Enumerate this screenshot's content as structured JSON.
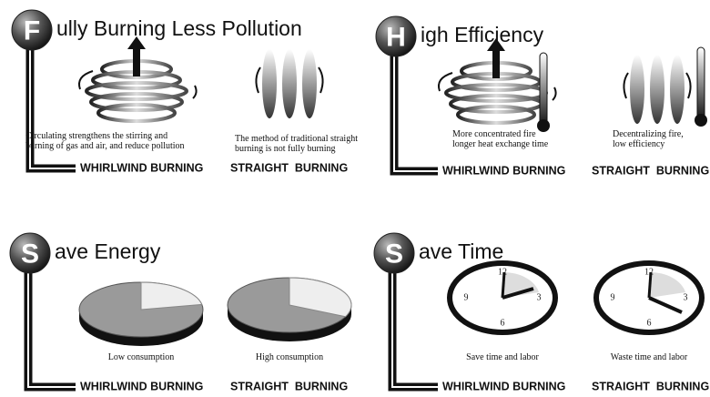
{
  "panels": [
    {
      "letter": "F",
      "title": "ully Burning Less Pollution",
      "left": {
        "caption": [
          "Circulating strengthens the stirring and",
          "burning of gas and air, and reduce pollution"
        ],
        "label": "WHIRLWIND BURNING"
      },
      "right": {
        "caption": [
          "The method of traditional straight",
          "burning is not fully burning"
        ],
        "label": "STRAIGHT  BURNING"
      }
    },
    {
      "letter": "H",
      "title": "igh Efficiency",
      "left": {
        "caption": [
          "More concentrated fire",
          "longer heat exchange time"
        ],
        "label": "WHIRLWIND BURNING"
      },
      "right": {
        "caption": [
          "Decentralizing fire,",
          "low efficiency"
        ],
        "label": "STRAIGHT  BURNING"
      }
    },
    {
      "letter": "S",
      "title": "ave Energy",
      "left": {
        "caption": [
          "Low consumption"
        ],
        "label": "WHIRLWIND BURNING"
      },
      "right": {
        "caption": [
          "High consumption"
        ],
        "label": "STRAIGHT  BURNING"
      }
    },
    {
      "letter": "S",
      "title": "ave Time",
      "left": {
        "caption": [
          "Save time and labor"
        ],
        "label": "WHIRLWIND BURNING",
        "dial": [
          "12",
          "3",
          "6",
          "9"
        ]
      },
      "right": {
        "caption": [
          "Waste time and labor"
        ],
        "label": "STRAIGHT  BURNING",
        "dial": [
          "12",
          "3",
          "6",
          "9"
        ]
      }
    }
  ]
}
